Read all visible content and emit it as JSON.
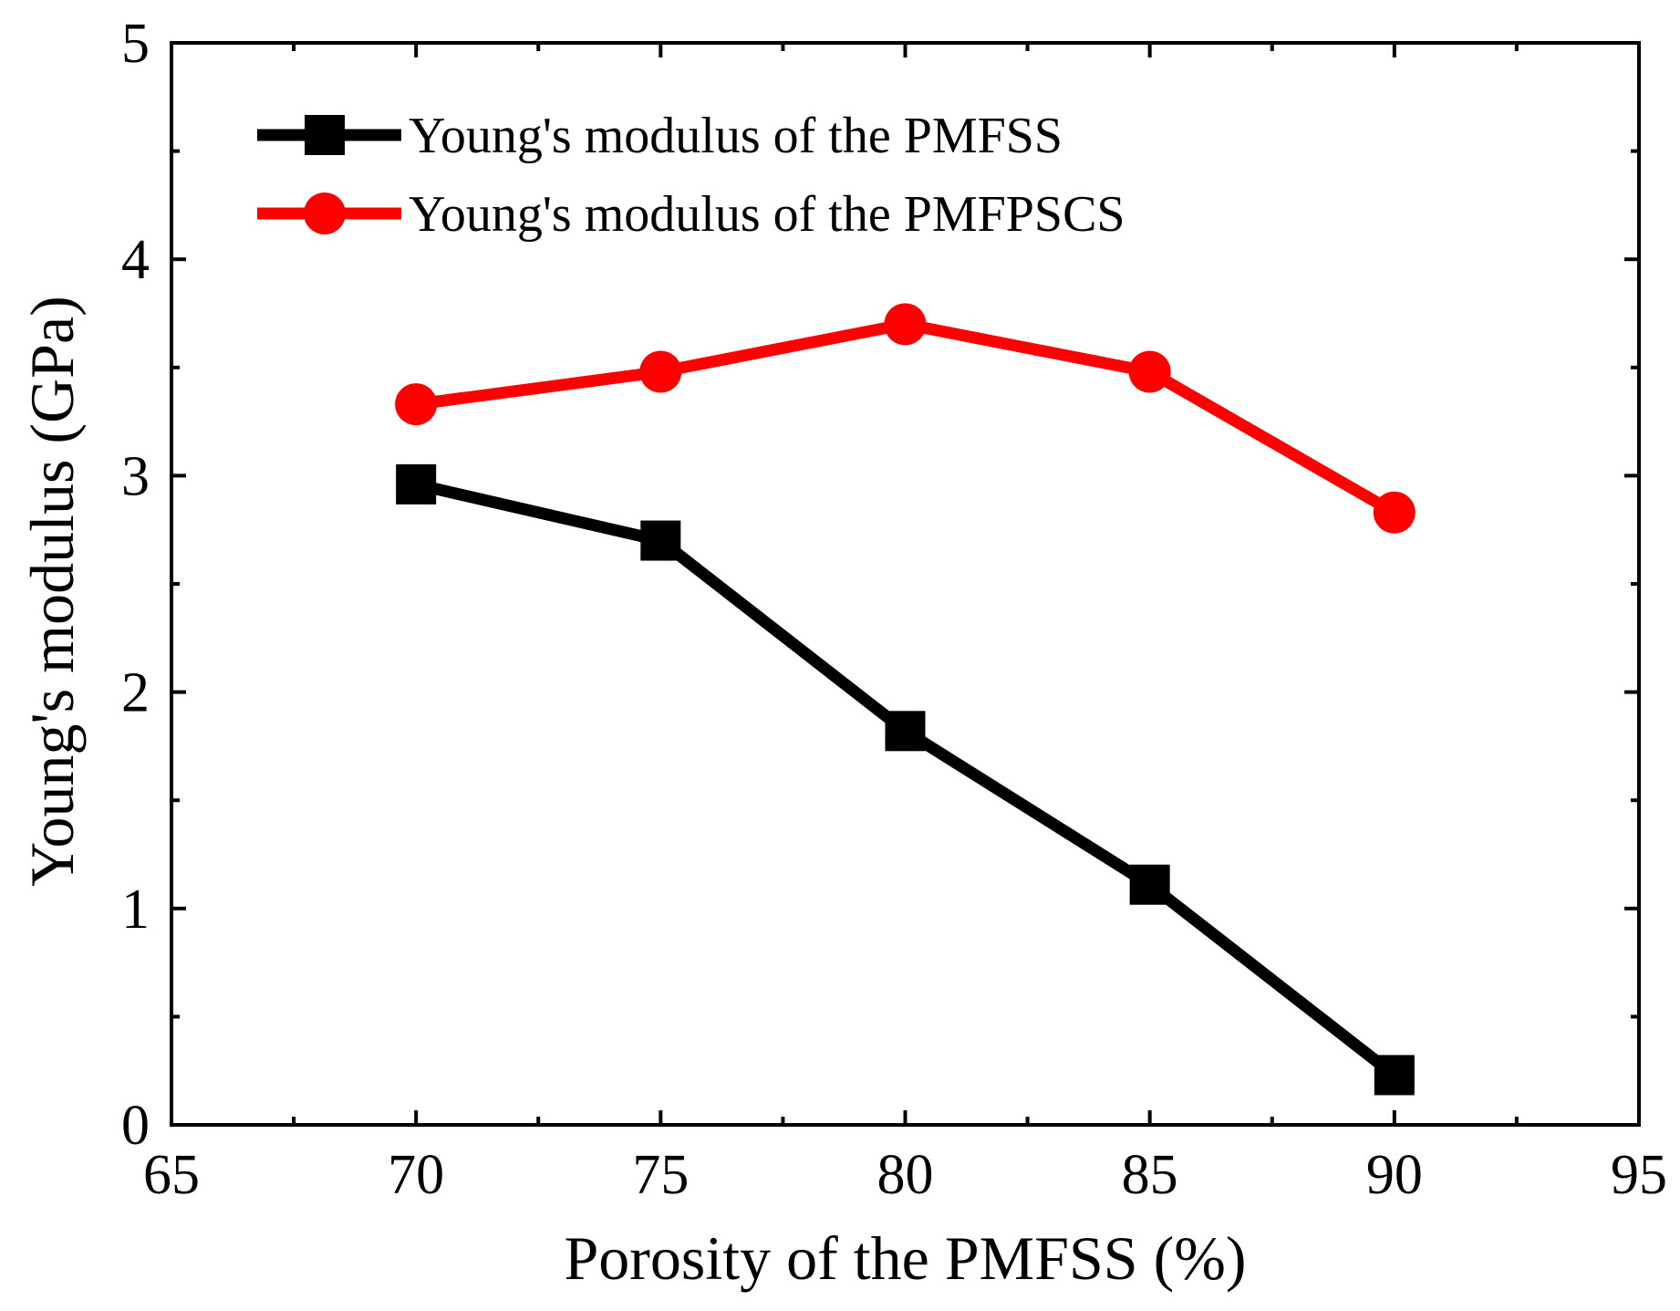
{
  "chart_data": {
    "type": "line",
    "title": "",
    "xlabel": "Porosity of the PMFSS (%)",
    "ylabel": "Young's modulus (GPa)",
    "xlim": [
      65,
      95
    ],
    "ylim": [
      0,
      5
    ],
    "x_major_ticks": [
      65,
      70,
      75,
      80,
      85,
      90,
      95
    ],
    "x_minor_step": 2.5,
    "y_major_ticks": [
      0,
      1,
      2,
      3,
      4,
      5
    ],
    "y_minor_step": 0.5,
    "grid": false,
    "legend_position": "top-left",
    "series": [
      {
        "name": "Young's modulus of the PMFSS",
        "color": "#000000",
        "marker": "square",
        "x": [
          70,
          75,
          80,
          85,
          90
        ],
        "y": [
          2.96,
          2.7,
          1.82,
          1.11,
          0.23
        ]
      },
      {
        "name": "Young's modulus of the PMFPSCS",
        "color": "#ff0000",
        "marker": "circle",
        "x": [
          70,
          75,
          80,
          85,
          90
        ],
        "y": [
          3.33,
          3.48,
          3.7,
          3.48,
          2.83
        ]
      }
    ]
  }
}
